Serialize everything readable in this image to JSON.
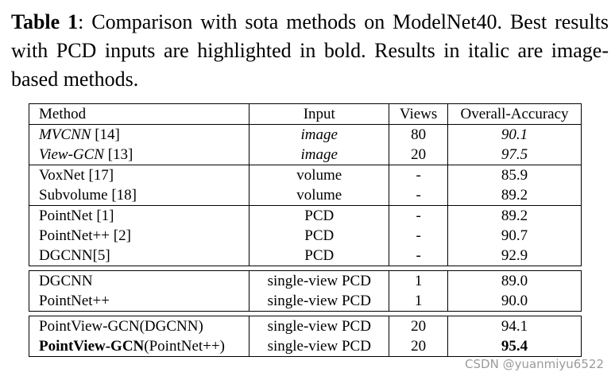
{
  "caption": {
    "label": "Table 1",
    "text": ":  Comparison with sota methods on ModelNet40. Best results with PCD inputs are highlighted in bold. Results in italic are image-based methods."
  },
  "table": {
    "headers": [
      "Method",
      "Input",
      "Views",
      "Overall-Accuracy"
    ],
    "groups": [
      [
        {
          "method": "MVCNN",
          "ref": " [14]",
          "input": "image",
          "views": "80",
          "acc": "90.1",
          "italic": true
        },
        {
          "method": "View-GCN",
          "ref": " [13]",
          "input": "image",
          "views": "20",
          "acc": "97.5",
          "italic": true
        }
      ],
      [
        {
          "method": "VoxNet",
          "ref": " [17]",
          "input": "volume",
          "views": "-",
          "acc": "85.9"
        },
        {
          "method": "Subvolume",
          "ref": " [18]",
          "input": "volume",
          "views": "-",
          "acc": "89.2"
        }
      ],
      [
        {
          "method": "PointNet",
          "ref": " [1]",
          "input": "PCD",
          "views": "-",
          "acc": "89.2"
        },
        {
          "method": "PointNet++",
          "ref": " [2]",
          "input": "PCD",
          "views": "-",
          "acc": "90.7"
        },
        {
          "method": "DGCNN",
          "ref": "[5]",
          "input": "PCD",
          "views": "-",
          "acc": "92.9"
        }
      ],
      [
        {
          "method": "DGCNN",
          "ref": "",
          "input": "single-view PCD",
          "views": "1",
          "acc": "89.0"
        },
        {
          "method": "PointNet++",
          "ref": "",
          "input": "single-view PCD",
          "views": "1",
          "acc": "90.0"
        }
      ],
      [
        {
          "method": "PointView-GCN",
          "ref": "(DGCNN)",
          "input": "single-view PCD",
          "views": "20",
          "acc": "94.1"
        },
        {
          "method": "PointView-GCN",
          "ref": "(PointNet++)",
          "input": "single-view PCD",
          "views": "20",
          "acc": "95.4",
          "bold": true
        }
      ]
    ]
  },
  "watermark": "CSDN @yuanmiyu6522"
}
